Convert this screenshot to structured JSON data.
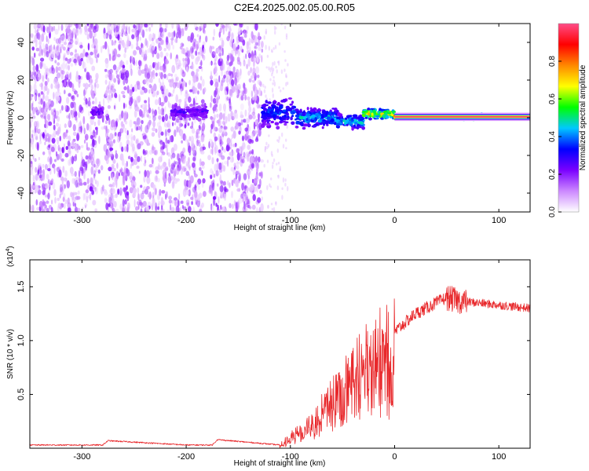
{
  "figure": {
    "title": "C2E4.2025.002.05.00.R05"
  },
  "chart_data": [
    {
      "type": "heatmap",
      "xlabel": "Height of straight line (km)",
      "ylabel": "Frequency (Hz)",
      "xlim": [
        -350,
        130
      ],
      "ylim": [
        -50,
        50
      ],
      "x_ticks": [
        -300,
        -200,
        -100,
        0,
        100
      ],
      "y_ticks": [
        -40,
        -20,
        0,
        20,
        40
      ],
      "colorbar": {
        "label": "Normalized spectral amplitude",
        "range": [
          0,
          1
        ],
        "ticks": [
          "0.0",
          "0.2",
          "0.4",
          "0.6",
          "0.8"
        ],
        "colormap": [
          "#ffffff",
          "#cc88ff",
          "#7a00ff",
          "#0000ff",
          "#00c8ff",
          "#00ff00",
          "#ffff00",
          "#ff8800",
          "#ff0000",
          "#ff4d88"
        ]
      },
      "noise_gaps": [
        [
          -285,
          -278
        ],
        [
          -182,
          -177
        ]
      ],
      "noise_end_x": -127,
      "features": [
        {
          "x_range": [
            -290,
            -280
          ],
          "freq": 3,
          "spread": 4,
          "amplitude": 0.28
        },
        {
          "x_range": [
            -215,
            -180
          ],
          "freq": 3,
          "spread": 5,
          "amplitude": 0.3
        },
        {
          "x_range": [
            -127,
            -95
          ],
          "freq": 3,
          "spread": 9,
          "amplitude": 0.42
        },
        {
          "x_range": [
            -95,
            -55
          ],
          "freq": 0,
          "spread": 6,
          "amplitude": 0.5
        },
        {
          "x_range": [
            -55,
            -30
          ],
          "freq": -2,
          "spread": 4,
          "amplitude": 0.55
        },
        {
          "x_range": [
            -30,
            0
          ],
          "freq": 2,
          "spread": 3,
          "amplitude": 0.75
        },
        {
          "x_range": [
            0,
            130
          ],
          "freq": 0.5,
          "spread": 1.5,
          "amplitude": 0.98
        }
      ]
    },
    {
      "type": "line",
      "xlabel": "Height of straight line (km)",
      "ylabel": "SNR (10 * v/v)",
      "multiplier": "(x10",
      "multiplier_exp": "4",
      "xlim": [
        -350,
        130
      ],
      "ylim": [
        0,
        1.75
      ],
      "x_ticks": [
        -300,
        -200,
        -100,
        0,
        100
      ],
      "y_ticks": [
        "0.5",
        "1.0",
        "1.5"
      ],
      "color": "#e8282b",
      "series": [
        {
          "x": [
            -350,
            -300,
            -280,
            -275,
            -200,
            -175,
            -170,
            -110,
            -100,
            -80,
            -60,
            -40,
            -20,
            0,
            20,
            40,
            50,
            60,
            80,
            100,
            120,
            130
          ],
          "y": [
            0.03,
            0.03,
            0.03,
            0.07,
            0.03,
            0.03,
            0.08,
            0.03,
            0.1,
            0.25,
            0.5,
            0.75,
            0.95,
            1.08,
            1.25,
            1.35,
            1.4,
            1.37,
            1.35,
            1.33,
            1.31,
            1.3
          ]
        }
      ]
    }
  ]
}
